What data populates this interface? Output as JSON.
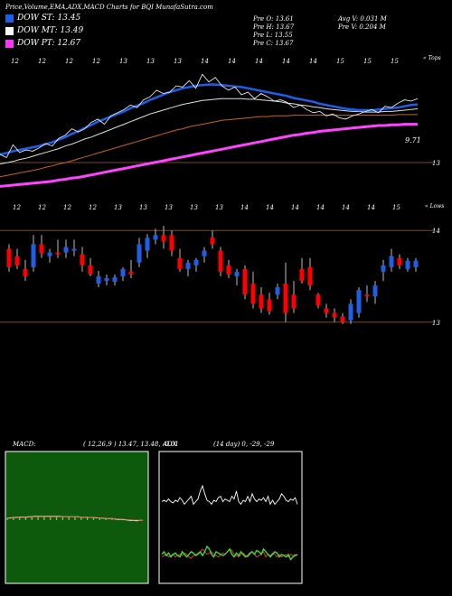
{
  "header": {
    "title": "Price,Volume,EMA,ADX,MACD Charts for BQI MunafaSutra.com",
    "stats": {
      "open": "Pre   O: 13.61",
      "high": "Pre   H: 13.67",
      "low": "Pre   L: 13.55",
      "close": "Pre   C: 13.67",
      "avg_volume": "Avg V: 0.031 M",
      "prev_volume": "Pre   V: 0.204  M"
    }
  },
  "legend": [
    {
      "label": "DOW ST: 13.45",
      "color": "#1f5fe8"
    },
    {
      "label": "DOW MT: 13.49",
      "color": "#ffffff"
    },
    {
      "label": "DOW PT: 12.67",
      "color": "#ff33ff"
    }
  ],
  "colors": {
    "up": "#1f5fe8",
    "down": "#ff0000",
    "macd_fill": "#0d5a0d"
  },
  "chart_data": [
    {
      "type": "line",
      "name": "price-ema",
      "axis_labels": {
        "top_right": "« Tops",
        "mid": "13",
        "lower": "13"
      },
      "top_dates": [
        "12",
        "12",
        "12",
        "12",
        "13",
        "13",
        "13",
        "14",
        "14",
        "14",
        "14",
        "14",
        "15",
        "15",
        "15"
      ],
      "value_label": "9.71",
      "x": [
        0,
        1,
        2,
        3,
        4,
        5,
        6,
        7,
        8,
        9,
        10,
        11,
        12,
        13,
        14,
        15,
        16,
        17,
        18,
        19,
        20,
        21,
        22,
        23,
        24,
        25,
        26,
        27,
        28,
        29,
        30,
        31,
        32,
        33,
        34,
        35,
        36,
        37,
        38,
        39,
        40,
        41,
        42,
        43,
        44,
        45,
        46,
        47,
        48,
        49,
        50,
        51,
        52,
        53,
        54,
        55,
        56,
        57,
        58,
        59,
        60,
        61,
        62,
        63,
        64
      ],
      "close": [
        12.55,
        12.5,
        12.7,
        12.58,
        12.62,
        12.6,
        12.65,
        12.72,
        12.68,
        12.8,
        12.85,
        12.95,
        12.9,
        12.95,
        13.05,
        13.1,
        13.02,
        13.15,
        13.2,
        13.25,
        13.32,
        13.28,
        13.4,
        13.45,
        13.55,
        13.5,
        13.52,
        13.62,
        13.6,
        13.7,
        13.58,
        13.8,
        13.68,
        13.75,
        13.62,
        13.55,
        13.6,
        13.48,
        13.52,
        13.42,
        13.5,
        13.45,
        13.38,
        13.4,
        13.36,
        13.28,
        13.32,
        13.25,
        13.2,
        13.22,
        13.15,
        13.18,
        13.12,
        13.1,
        13.15,
        13.18,
        13.22,
        13.25,
        13.2,
        13.3,
        13.28,
        13.35,
        13.4,
        13.38,
        13.42
      ],
      "ema_short": [
        12.55,
        12.57,
        12.6,
        12.62,
        12.64,
        12.66,
        12.68,
        12.71,
        12.74,
        12.78,
        12.82,
        12.87,
        12.91,
        12.96,
        13.01,
        13.06,
        13.1,
        13.14,
        13.18,
        13.22,
        13.27,
        13.31,
        13.35,
        13.4,
        13.44,
        13.48,
        13.52,
        13.55,
        13.58,
        13.6,
        13.62,
        13.63,
        13.64,
        13.64,
        13.63,
        13.62,
        13.61,
        13.6,
        13.58,
        13.56,
        13.54,
        13.52,
        13.5,
        13.48,
        13.46,
        13.43,
        13.41,
        13.39,
        13.37,
        13.34,
        13.32,
        13.3,
        13.28,
        13.26,
        13.25,
        13.24,
        13.24,
        13.24,
        13.25,
        13.26,
        13.27,
        13.28,
        13.3,
        13.32,
        13.33
      ],
      "ema_mid": [
        12.4,
        12.42,
        12.44,
        12.47,
        12.49,
        12.52,
        12.55,
        12.58,
        12.61,
        12.64,
        12.68,
        12.71,
        12.75,
        12.79,
        12.82,
        12.86,
        12.9,
        12.94,
        12.98,
        13.02,
        13.06,
        13.1,
        13.14,
        13.18,
        13.21,
        13.24,
        13.27,
        13.3,
        13.33,
        13.35,
        13.37,
        13.39,
        13.4,
        13.41,
        13.42,
        13.42,
        13.42,
        13.42,
        13.41,
        13.41,
        13.4,
        13.39,
        13.38,
        13.37,
        13.35,
        13.34,
        13.32,
        13.31,
        13.29,
        13.28,
        13.26,
        13.25,
        13.24,
        13.23,
        13.22,
        13.22,
        13.21,
        13.21,
        13.21,
        13.22,
        13.22,
        13.23,
        13.24,
        13.25,
        13.26
      ],
      "ema_long": [
        12.2,
        12.22,
        12.24,
        12.26,
        12.28,
        12.3,
        12.32,
        12.35,
        12.37,
        12.4,
        12.42,
        12.45,
        12.48,
        12.51,
        12.54,
        12.57,
        12.6,
        12.63,
        12.66,
        12.69,
        12.72,
        12.75,
        12.78,
        12.81,
        12.84,
        12.87,
        12.9,
        12.93,
        12.95,
        12.98,
        13.0,
        13.02,
        13.04,
        13.06,
        13.08,
        13.09,
        13.1,
        13.11,
        13.12,
        13.13,
        13.14,
        13.14,
        13.15,
        13.15,
        13.15,
        13.16,
        13.16,
        13.16,
        13.16,
        13.16,
        13.16,
        13.16,
        13.16,
        13.16,
        13.16,
        13.16,
        13.16,
        13.16,
        13.16,
        13.16,
        13.16,
        13.17,
        13.17,
        13.17,
        13.17
      ],
      "ema_longest": [
        12.05,
        12.06,
        12.07,
        12.08,
        12.09,
        12.1,
        12.11,
        12.12,
        12.13,
        12.15,
        12.16,
        12.18,
        12.19,
        12.21,
        12.23,
        12.25,
        12.27,
        12.29,
        12.31,
        12.33,
        12.35,
        12.37,
        12.39,
        12.41,
        12.43,
        12.45,
        12.47,
        12.49,
        12.51,
        12.53,
        12.55,
        12.57,
        12.59,
        12.61,
        12.63,
        12.65,
        12.67,
        12.69,
        12.71,
        12.73,
        12.75,
        12.77,
        12.79,
        12.81,
        12.83,
        12.85,
        12.86,
        12.88,
        12.89,
        12.91,
        12.92,
        12.93,
        12.94,
        12.95,
        12.96,
        12.97,
        12.98,
        12.99,
        13.0,
        13.0,
        13.01,
        13.01,
        13.02,
        13.02,
        13.02
      ],
      "ylim": [
        12.0,
        14.0
      ]
    },
    {
      "type": "candlestick",
      "name": "candles",
      "axis_labels": {
        "top_right": "« Lows",
        "upper": "14",
        "lower": "13"
      },
      "top_dates": [
        "12",
        "12",
        "12",
        "12",
        "13",
        "13",
        "13",
        "13",
        "13",
        "14",
        "14",
        "14",
        "14",
        "14",
        "14",
        "15"
      ],
      "ylim": [
        12.85,
        14.15
      ],
      "levels": [
        14.0,
        13.0
      ],
      "candles": [
        {
          "o": 13.8,
          "h": 13.85,
          "l": 13.55,
          "c": 13.6
        },
        {
          "o": 13.72,
          "h": 13.8,
          "l": 13.58,
          "c": 13.62
        },
        {
          "o": 13.58,
          "h": 13.68,
          "l": 13.45,
          "c": 13.5
        },
        {
          "o": 13.6,
          "h": 13.95,
          "l": 13.55,
          "c": 13.85
        },
        {
          "o": 13.85,
          "h": 13.95,
          "l": 13.7,
          "c": 13.75
        },
        {
          "o": 13.72,
          "h": 13.8,
          "l": 13.65,
          "c": 13.76
        },
        {
          "o": 13.76,
          "h": 13.9,
          "l": 13.7,
          "c": 13.74
        },
        {
          "o": 13.76,
          "h": 13.9,
          "l": 13.7,
          "c": 13.82
        },
        {
          "o": 13.78,
          "h": 13.9,
          "l": 13.72,
          "c": 13.8
        },
        {
          "o": 13.74,
          "h": 13.82,
          "l": 13.55,
          "c": 13.62
        },
        {
          "o": 13.62,
          "h": 13.7,
          "l": 13.5,
          "c": 13.52
        },
        {
          "o": 13.42,
          "h": 13.56,
          "l": 13.38,
          "c": 13.5
        },
        {
          "o": 13.45,
          "h": 13.52,
          "l": 13.4,
          "c": 13.48
        },
        {
          "o": 13.44,
          "h": 13.52,
          "l": 13.4,
          "c": 13.49
        },
        {
          "o": 13.5,
          "h": 13.6,
          "l": 13.45,
          "c": 13.58
        },
        {
          "o": 13.55,
          "h": 13.68,
          "l": 13.48,
          "c": 13.52
        },
        {
          "o": 13.65,
          "h": 13.92,
          "l": 13.6,
          "c": 13.85
        },
        {
          "o": 13.78,
          "h": 13.96,
          "l": 13.7,
          "c": 13.92
        },
        {
          "o": 13.9,
          "h": 14.02,
          "l": 13.85,
          "c": 13.95
        },
        {
          "o": 13.95,
          "h": 14.05,
          "l": 13.8,
          "c": 13.88
        },
        {
          "o": 13.95,
          "h": 14.0,
          "l": 13.72,
          "c": 13.78
        },
        {
          "o": 13.7,
          "h": 13.8,
          "l": 13.55,
          "c": 13.58
        },
        {
          "o": 13.58,
          "h": 13.68,
          "l": 13.5,
          "c": 13.65
        },
        {
          "o": 13.62,
          "h": 13.7,
          "l": 13.55,
          "c": 13.68
        },
        {
          "o": 13.72,
          "h": 13.82,
          "l": 13.65,
          "c": 13.78
        },
        {
          "o": 13.92,
          "h": 14.0,
          "l": 13.8,
          "c": 13.85
        },
        {
          "o": 13.78,
          "h": 13.82,
          "l": 13.5,
          "c": 13.55
        },
        {
          "o": 13.62,
          "h": 13.68,
          "l": 13.48,
          "c": 13.52
        },
        {
          "o": 13.5,
          "h": 13.58,
          "l": 13.4,
          "c": 13.55
        },
        {
          "o": 13.58,
          "h": 13.62,
          "l": 13.25,
          "c": 13.3
        },
        {
          "o": 13.42,
          "h": 13.55,
          "l": 13.15,
          "c": 13.2
        },
        {
          "o": 13.3,
          "h": 13.38,
          "l": 13.1,
          "c": 13.15
        },
        {
          "o": 13.25,
          "h": 13.32,
          "l": 13.08,
          "c": 13.12
        },
        {
          "o": 13.3,
          "h": 13.42,
          "l": 13.25,
          "c": 13.38
        },
        {
          "o": 13.42,
          "h": 13.65,
          "l": 13.0,
          "c": 13.1
        },
        {
          "o": 13.3,
          "h": 13.45,
          "l": 13.1,
          "c": 13.15
        },
        {
          "o": 13.58,
          "h": 13.7,
          "l": 13.42,
          "c": 13.45
        },
        {
          "o": 13.6,
          "h": 13.7,
          "l": 13.35,
          "c": 13.4
        },
        {
          "o": 13.3,
          "h": 13.32,
          "l": 13.15,
          "c": 13.18
        },
        {
          "o": 13.15,
          "h": 13.2,
          "l": 13.05,
          "c": 13.1
        },
        {
          "o": 13.1,
          "h": 13.15,
          "l": 13.0,
          "c": 13.05
        },
        {
          "o": 13.06,
          "h": 13.1,
          "l": 12.98,
          "c": 13.0
        },
        {
          "o": 13.02,
          "h": 13.25,
          "l": 12.98,
          "c": 13.2
        },
        {
          "o": 13.1,
          "h": 13.38,
          "l": 13.05,
          "c": 13.35
        },
        {
          "o": 13.3,
          "h": 13.4,
          "l": 13.22,
          "c": 13.28
        },
        {
          "o": 13.28,
          "h": 13.45,
          "l": 13.2,
          "c": 13.4
        },
        {
          "o": 13.55,
          "h": 13.68,
          "l": 13.45,
          "c": 13.62
        },
        {
          "o": 13.6,
          "h": 13.8,
          "l": 13.55,
          "c": 13.72
        },
        {
          "o": 13.7,
          "h": 13.74,
          "l": 13.58,
          "c": 13.62
        },
        {
          "o": 13.58,
          "h": 13.7,
          "l": 13.55,
          "c": 13.67
        },
        {
          "o": 13.6,
          "h": 13.7,
          "l": 13.55,
          "c": 13.67
        }
      ]
    },
    {
      "type": "area",
      "name": "macd",
      "label": "MACD:",
      "params": "( 12,26,9 ) 13.47, 13.48, -0.01",
      "ylim": [
        -1,
        1
      ],
      "macd": [
        0.05,
        0.06,
        0.07,
        0.07,
        0.08,
        0.08,
        0.08,
        0.09,
        0.09,
        0.1,
        0.1,
        0.1,
        0.1,
        0.1,
        0.1,
        0.1,
        0.1,
        0.1,
        0.09,
        0.09,
        0.09,
        0.09,
        0.09,
        0.09,
        0.08,
        0.08,
        0.08,
        0.07,
        0.07,
        0.06,
        0.06,
        0.05,
        0.05,
        0.04,
        0.04,
        0.03,
        0.02,
        0.02,
        0.01,
        0.0,
        -0.01,
        -0.01,
        -0.02,
        -0.01,
        -0.01
      ],
      "signal": [
        0.04,
        0.05,
        0.06,
        0.06,
        0.07,
        0.07,
        0.07,
        0.08,
        0.08,
        0.09,
        0.09,
        0.09,
        0.09,
        0.09,
        0.09,
        0.09,
        0.09,
        0.09,
        0.09,
        0.09,
        0.09,
        0.09,
        0.09,
        0.08,
        0.08,
        0.08,
        0.08,
        0.07,
        0.07,
        0.07,
        0.06,
        0.06,
        0.05,
        0.05,
        0.04,
        0.04,
        0.03,
        0.03,
        0.02,
        0.01,
        0.01,
        0.0,
        0.0,
        -0.01,
        -0.01
      ]
    },
    {
      "type": "line",
      "name": "adx",
      "label": "ADX",
      "params": "(14  day) 0, -29, -29",
      "ylim": [
        0,
        100
      ],
      "adx": [
        62,
        63,
        62,
        64,
        62,
        61,
        63,
        62,
        65,
        63,
        60,
        62,
        64,
        66,
        60,
        62,
        64,
        70,
        74,
        68,
        63,
        62,
        60,
        63,
        62,
        65,
        66,
        62,
        64,
        63,
        62,
        66,
        64,
        70,
        62,
        60,
        63,
        62,
        66,
        62,
        68,
        64,
        62,
        64,
        63,
        65,
        62,
        66,
        60,
        63,
        60,
        62,
        64,
        68,
        66,
        63,
        62,
        64,
        63,
        65,
        60
      ],
      "plus_di": [
        22,
        24,
        21,
        23,
        20,
        22,
        23,
        21,
        20,
        24,
        22,
        20,
        22,
        24,
        23,
        21,
        22,
        24,
        21,
        24,
        28,
        26,
        22,
        20,
        24,
        23,
        22,
        21,
        22,
        24,
        26,
        22,
        20,
        23,
        21,
        24,
        22,
        20,
        21,
        23,
        24,
        22,
        25,
        24,
        22,
        26,
        24,
        22,
        20,
        22,
        24,
        23,
        20,
        22,
        21,
        20,
        22,
        18,
        20,
        21,
        22
      ],
      "minus_di": [
        20,
        21,
        22,
        20,
        21,
        22,
        20,
        21,
        22,
        21,
        23,
        22,
        20,
        19,
        21,
        22,
        23,
        24,
        26,
        24,
        22,
        23,
        24,
        22,
        21,
        20,
        22,
        23,
        22,
        24,
        26,
        25,
        22,
        21,
        20,
        22,
        23,
        21,
        20,
        22,
        24,
        22,
        20,
        21,
        22,
        24,
        20,
        22,
        21,
        23,
        22,
        20,
        22,
        20,
        21,
        22,
        20,
        22,
        21,
        22,
        21
      ]
    }
  ]
}
